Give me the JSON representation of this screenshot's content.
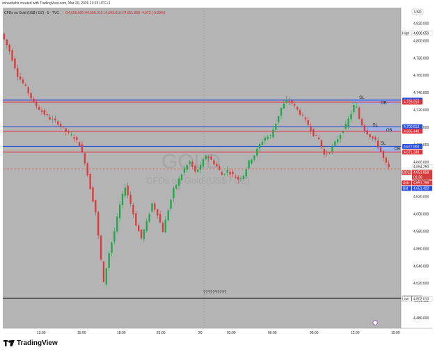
{
  "header": {
    "attribution": "zohasttahir created with TradingView.com, Mar 20, 2026 13:23 UTC+1",
    "symbol_line": "CFDs on Gold (US$ / OZ) · 5 · TVC",
    "ohlc": "O4,656.005 H4,656.010 L4,649.610 C4,651.858 -4.072 (-0.09%)",
    "currency": "USD"
  },
  "watermark": {
    "symbol": "GOLD",
    "description": "CFDs on Gold (US$ / OZ)"
  },
  "colors": {
    "background": "#b4b4b4",
    "up_candle": "#1ea84a",
    "down_candle": "#d63c3c",
    "blue_level": "#2a4fe0",
    "red_level": "#e0303a",
    "ob_zone": "#9db4e8"
  },
  "chart_data": {
    "type": "candlestick",
    "title": "CFDs on Gold (US$ / OZ)",
    "timeframe": "5",
    "x_ticks": [
      "12:00",
      "15:00",
      "18:00",
      "21:00",
      "20",
      "03:00",
      "06:00",
      "09:00",
      "12:00",
      "15:00"
    ],
    "y_ticks": [
      4820,
      4800,
      4780,
      4760,
      4740,
      4720,
      4700,
      4680,
      4660,
      4640,
      4620,
      4600,
      4580,
      4560,
      4540,
      4520,
      4500,
      4480
    ],
    "y_tick_labels": [
      "4,820.000",
      "4,800.000",
      "4,780.000",
      "4,760.000",
      "4,740.000",
      "4,720.000",
      "4,700.000",
      "4,680.000",
      "4,660.000",
      "4,640.000",
      "4,620.000",
      "4,600.000",
      "4,580.000",
      "4,560.000",
      "4,540.000",
      "4,520.000",
      "4,500.000",
      "4,480.000"
    ],
    "ylim": [
      4468,
      4838
    ],
    "price_path": [
      [
        0,
        4808
      ],
      [
        3,
        4788
      ],
      [
        6,
        4760
      ],
      [
        9,
        4746
      ],
      [
        12,
        4728
      ],
      [
        15,
        4718
      ],
      [
        18,
        4710
      ],
      [
        21,
        4705
      ],
      [
        24,
        4695
      ],
      [
        27,
        4688
      ],
      [
        29,
        4680
      ],
      [
        31,
        4660
      ],
      [
        33,
        4630
      ],
      [
        35,
        4602
      ],
      [
        36.5,
        4560
      ],
      [
        38,
        4520
      ],
      [
        39,
        4538
      ],
      [
        40,
        4555
      ],
      [
        42,
        4580
      ],
      [
        44,
        4610
      ],
      [
        46,
        4632
      ],
      [
        48,
        4612
      ],
      [
        50,
        4588
      ],
      [
        52,
        4572
      ],
      [
        54,
        4590
      ],
      [
        56,
        4612
      ],
      [
        58,
        4600
      ],
      [
        60,
        4580
      ],
      [
        62,
        4605
      ],
      [
        64,
        4628
      ],
      [
        66,
        4640
      ],
      [
        68,
        4652
      ],
      [
        70,
        4660
      ],
      [
        72,
        4648
      ],
      [
        74,
        4655
      ],
      [
        76,
        4668
      ],
      [
        78,
        4662
      ],
      [
        80,
        4655
      ],
      [
        82,
        4645
      ],
      [
        84,
        4650
      ],
      [
        86,
        4645
      ],
      [
        88,
        4640
      ],
      [
        90,
        4645
      ],
      [
        92,
        4660
      ],
      [
        94,
        4668
      ],
      [
        96,
        4680
      ],
      [
        98,
        4688
      ],
      [
        100,
        4690
      ],
      [
        102,
        4705
      ],
      [
        104,
        4722
      ],
      [
        106,
        4731
      ],
      [
        108,
        4728
      ],
      [
        110,
        4720
      ],
      [
        112,
        4712
      ],
      [
        114,
        4703
      ],
      [
        116,
        4692
      ],
      [
        118,
        4686
      ],
      [
        120,
        4668
      ],
      [
        122,
        4672
      ],
      [
        124,
        4682
      ],
      [
        126,
        4692
      ],
      [
        128,
        4702
      ],
      [
        130,
        4716
      ],
      [
        131.5,
        4729
      ],
      [
        133,
        4710
      ],
      [
        135,
        4697
      ],
      [
        137,
        4690
      ],
      [
        139,
        4684
      ],
      [
        141,
        4672
      ],
      [
        142.5,
        4660
      ],
      [
        144,
        4653
      ]
    ],
    "horizontal_levels": [
      {
        "price": 4731.278,
        "label": "4,731.278",
        "color": "blue"
      },
      {
        "price": 4728.919,
        "label": "4,728.919",
        "color": "red"
      },
      {
        "price": 4700.613,
        "label": "4,700.613",
        "color": "blue"
      },
      {
        "price": 4695.448,
        "label": "4,695.448",
        "color": "red"
      },
      {
        "price": 4677.904,
        "label": "4,677.904",
        "color": "blue"
      },
      {
        "price": 4671.338,
        "label": "4,671.338",
        "color": "red"
      },
      {
        "price": 4502.56,
        "label": "4,502.560",
        "color": "black"
      }
    ],
    "annotations": [
      {
        "text": "SL",
        "x": 132,
        "price": 4733
      },
      {
        "text": "OB",
        "x": 140,
        "price": 4727
      },
      {
        "text": "SL",
        "x": 137,
        "price": 4701
      },
      {
        "text": "OB",
        "x": 142,
        "price": 4695
      },
      {
        "text": "SL",
        "x": 140,
        "price": 4680
      },
      {
        "text": "OB",
        "x": 145,
        "price": 4674
      },
      {
        "text": "??????????",
        "x": 74,
        "price": 4508
      }
    ],
    "price_labels": {
      "high": {
        "tag": "High",
        "price": 4808.65,
        "label": "4,808.650"
      },
      "low": {
        "tag": "Low",
        "price": 4502.01,
        "label": "4,502.010"
      },
      "current": {
        "tag": "GOLD",
        "price": 4651.858,
        "label": "4,651.858",
        "countdown": "01:36"
      },
      "ask": {
        "tag": "Ask",
        "price": 4651.798,
        "label": "4,651.798"
      },
      "bid": {
        "tag": "Bid",
        "price": 4651.42,
        "label": "4,651.420"
      },
      "prev": {
        "price": 4654.25,
        "label": "4,654.250"
      }
    }
  },
  "footer": {
    "brand": "TradingView"
  }
}
